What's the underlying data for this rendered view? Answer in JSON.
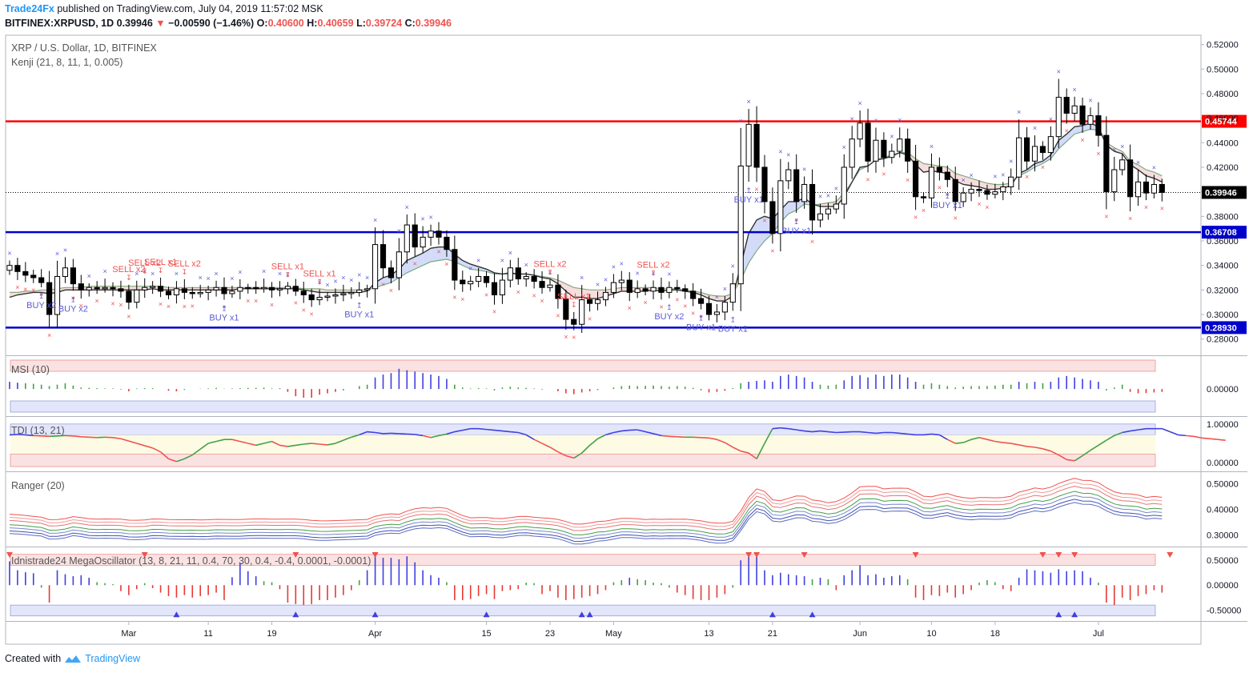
{
  "header": {
    "publisher": "Trade24Fx",
    "published_text": "published on TradingView.com, July 04, 2019 11:57:02 MSK",
    "symbol": "BITFINEX:XRPUSD, 1D",
    "last": "0.39946",
    "arrow": "▼",
    "change": "−0.00590 (−1.46%)",
    "o_label": "O:",
    "o": "0.40600",
    "h_label": "H:",
    "h": "0.40659",
    "l_label": "L:",
    "l": "0.39724",
    "c_label": "C:",
    "c": "0.39946"
  },
  "footer": {
    "created_with": "Created with",
    "tradingview": "TradingView"
  },
  "colors": {
    "up": "#ffffff",
    "down": "#000000",
    "red_level": "#ff0000",
    "blue_level": "#0000cc",
    "buy": "#5b5bd6",
    "sell": "#ef5350"
  },
  "chart_data": [
    {
      "type": "candlestick",
      "title": "XRP / U.S. Dollar, 1D, BITFINEX",
      "indicator_label": "Kenji (21, 8, 11, 1, 0.005)",
      "ylim": [
        0.27,
        0.525
      ],
      "y_ticks": [
        "0.52000",
        "0.50000",
        "0.48000",
        "0.46000",
        "0.44000",
        "0.42000",
        "0.40000",
        "0.38000",
        "0.36000",
        "0.34000",
        "0.32000",
        "0.30000",
        "0.28000"
      ],
      "x_ticks": [
        {
          "label": "Mar",
          "index": 15
        },
        {
          "label": "11",
          "index": 25
        },
        {
          "label": "19",
          "index": 33
        },
        {
          "label": "Apr",
          "index": 46
        },
        {
          "label": "15",
          "index": 60
        },
        {
          "label": "23",
          "index": 68
        },
        {
          "label": "May",
          "index": 76
        },
        {
          "label": "13",
          "index": 88
        },
        {
          "label": "21",
          "index": 96
        },
        {
          "label": "Jun",
          "index": 107
        },
        {
          "label": "10",
          "index": 116
        },
        {
          "label": "18",
          "index": 124
        },
        {
          "label": "Jul",
          "index": 137
        }
      ],
      "levels": [
        {
          "value": 0.45744,
          "label": "0.45744",
          "color": "#ff0000"
        },
        {
          "value": 0.36708,
          "label": "0.36708",
          "color": "#0000cc"
        },
        {
          "value": 0.2893,
          "label": "0.28930",
          "color": "#0000cc"
        }
      ],
      "last_price": {
        "value": 0.39946,
        "label": "0.39946"
      },
      "closes": [
        0.34,
        0.335,
        0.332,
        0.33,
        0.326,
        0.3,
        0.331,
        0.338,
        0.325,
        0.32,
        0.322,
        0.321,
        0.322,
        0.321,
        0.319,
        0.31,
        0.32,
        0.322,
        0.323,
        0.319,
        0.316,
        0.321,
        0.318,
        0.317,
        0.318,
        0.32,
        0.322,
        0.317,
        0.319,
        0.322,
        0.322,
        0.321,
        0.322,
        0.32,
        0.321,
        0.323,
        0.319,
        0.316,
        0.312,
        0.314,
        0.315,
        0.316,
        0.317,
        0.318,
        0.32,
        0.321,
        0.357,
        0.338,
        0.33,
        0.351,
        0.373,
        0.355,
        0.363,
        0.368,
        0.363,
        0.353,
        0.328,
        0.325,
        0.327,
        0.331,
        0.326,
        0.316,
        0.328,
        0.338,
        0.329,
        0.331,
        0.327,
        0.322,
        0.324,
        0.313,
        0.296,
        0.292,
        0.312,
        0.309,
        0.312,
        0.318,
        0.326,
        0.328,
        0.318,
        0.321,
        0.319,
        0.322,
        0.318,
        0.322,
        0.321,
        0.319,
        0.313,
        0.309,
        0.3,
        0.302,
        0.31,
        0.325,
        0.421,
        0.455,
        0.42,
        0.392,
        0.366,
        0.409,
        0.418,
        0.392,
        0.406,
        0.377,
        0.382,
        0.386,
        0.39,
        0.42,
        0.443,
        0.456,
        0.425,
        0.442,
        0.428,
        0.433,
        0.443,
        0.425,
        0.396,
        0.395,
        0.42,
        0.416,
        0.41,
        0.392,
        0.399,
        0.402,
        0.401,
        0.398,
        0.4,
        0.404,
        0.412,
        0.444,
        0.425,
        0.437,
        0.432,
        0.445,
        0.477,
        0.464,
        0.47,
        0.455,
        0.462,
        0.446,
        0.4,
        0.418,
        0.426,
        0.396,
        0.408,
        0.399,
        0.406,
        0.39946
      ],
      "slow_line": [
        0.318,
        0.318,
        0.319,
        0.319,
        0.32,
        0.32,
        0.321,
        0.322,
        0.322,
        0.322,
        0.323,
        0.323,
        0.323,
        0.323,
        0.323,
        0.323,
        0.323,
        0.323,
        0.323,
        0.323,
        0.322,
        0.322,
        0.322,
        0.322,
        0.322,
        0.322,
        0.322,
        0.322,
        0.322,
        0.322,
        0.322,
        0.322,
        0.322,
        0.322,
        0.322,
        0.322,
        0.322,
        0.321,
        0.321,
        0.321,
        0.32,
        0.32,
        0.32,
        0.32,
        0.32,
        0.32,
        0.322,
        0.324,
        0.326,
        0.33,
        0.334,
        0.337,
        0.34,
        0.343,
        0.344,
        0.345,
        0.343,
        0.34,
        0.337,
        0.336,
        0.335,
        0.333,
        0.333,
        0.333,
        0.333,
        0.333,
        0.332,
        0.331,
        0.33,
        0.328,
        0.325,
        0.322,
        0.321,
        0.32,
        0.32,
        0.32,
        0.321,
        0.322,
        0.322,
        0.322,
        0.322,
        0.322,
        0.321,
        0.321,
        0.321,
        0.32,
        0.319,
        0.318,
        0.316,
        0.315,
        0.315,
        0.317,
        0.328,
        0.342,
        0.352,
        0.36,
        0.366,
        0.375,
        0.382,
        0.385,
        0.39,
        0.389,
        0.39,
        0.391,
        0.392,
        0.399,
        0.408,
        0.418,
        0.421,
        0.426,
        0.428,
        0.43,
        0.432,
        0.432,
        0.427,
        0.423,
        0.422,
        0.421,
        0.42,
        0.415,
        0.413,
        0.411,
        0.409,
        0.407,
        0.406,
        0.406,
        0.407,
        0.413,
        0.416,
        0.42,
        0.423,
        0.427,
        0.435,
        0.441,
        0.447,
        0.449,
        0.451,
        0.45,
        0.44,
        0.436,
        0.433,
        0.425,
        0.422,
        0.418,
        0.416,
        0.413
      ],
      "fast_line": [
        0.314,
        0.316,
        0.317,
        0.318,
        0.318,
        0.317,
        0.318,
        0.32,
        0.32,
        0.32,
        0.32,
        0.32,
        0.32,
        0.32,
        0.32,
        0.32,
        0.32,
        0.32,
        0.321,
        0.32,
        0.32,
        0.32,
        0.32,
        0.32,
        0.32,
        0.32,
        0.32,
        0.32,
        0.32,
        0.321,
        0.321,
        0.321,
        0.321,
        0.321,
        0.321,
        0.321,
        0.321,
        0.32,
        0.319,
        0.318,
        0.318,
        0.318,
        0.318,
        0.318,
        0.318,
        0.319,
        0.326,
        0.33,
        0.332,
        0.337,
        0.344,
        0.347,
        0.35,
        0.354,
        0.355,
        0.355,
        0.349,
        0.344,
        0.341,
        0.339,
        0.337,
        0.334,
        0.333,
        0.334,
        0.333,
        0.333,
        0.332,
        0.33,
        0.329,
        0.325,
        0.319,
        0.314,
        0.314,
        0.313,
        0.313,
        0.315,
        0.317,
        0.319,
        0.319,
        0.319,
        0.319,
        0.32,
        0.319,
        0.32,
        0.32,
        0.319,
        0.318,
        0.316,
        0.313,
        0.311,
        0.311,
        0.315,
        0.34,
        0.366,
        0.377,
        0.38,
        0.378,
        0.385,
        0.392,
        0.392,
        0.395,
        0.39,
        0.388,
        0.388,
        0.388,
        0.396,
        0.408,
        0.42,
        0.421,
        0.426,
        0.427,
        0.429,
        0.432,
        0.43,
        0.422,
        0.416,
        0.417,
        0.416,
        0.415,
        0.409,
        0.406,
        0.405,
        0.404,
        0.402,
        0.402,
        0.403,
        0.405,
        0.415,
        0.418,
        0.423,
        0.425,
        0.43,
        0.442,
        0.447,
        0.453,
        0.454,
        0.456,
        0.453,
        0.438,
        0.433,
        0.431,
        0.422,
        0.418,
        0.413,
        0.411,
        0.408
      ],
      "buy_labels": [
        {
          "index": 4,
          "label": "BUY x2"
        },
        {
          "index": 8,
          "label": "BUY x2"
        },
        {
          "index": 27,
          "label": "BUY x1"
        },
        {
          "index": 44,
          "label": "BUY x1"
        },
        {
          "index": 83,
          "label": "BUY x2"
        },
        {
          "index": 87,
          "label": "BUY x1"
        },
        {
          "index": 91,
          "label": "BUY x1"
        },
        {
          "index": 93,
          "label": "BUY x1"
        },
        {
          "index": 99,
          "label": "BUY x1"
        },
        {
          "index": 118,
          "label": "BUY x1"
        }
      ],
      "sell_labels": [
        {
          "index": 15,
          "label": "SELL x2"
        },
        {
          "index": 17,
          "label": "SELL x2"
        },
        {
          "index": 19,
          "label": "SELL x1"
        },
        {
          "index": 22,
          "label": "SELL x2"
        },
        {
          "index": 35,
          "label": "SELL x1"
        },
        {
          "index": 39,
          "label": "SELL x1"
        },
        {
          "index": 68,
          "label": "SELL x2"
        },
        {
          "index": 71,
          "label": "SELL x1"
        },
        {
          "index": 81,
          "label": "SELL x2"
        }
      ]
    },
    {
      "type": "bar",
      "title": "MSI (10)",
      "ylim": [
        -0.08,
        0.1
      ],
      "y_ticks": [
        "0.00000"
      ],
      "values": [
        0.025,
        0.022,
        0.02,
        0.018,
        0.015,
        0.01,
        0.015,
        0.02,
        0.012,
        0.005,
        0.004,
        0.003,
        0.002,
        0.002,
        -0.002,
        -0.008,
        0.002,
        0.003,
        0.003,
        0.0,
        -0.006,
        -0.008,
        -0.003,
        0.0,
        0.001,
        0.002,
        0.004,
        0.001,
        0.002,
        0.003,
        0.004,
        0.004,
        0.005,
        0.002,
        0.003,
        -0.01,
        -0.025,
        -0.03,
        -0.03,
        -0.02,
        -0.015,
        -0.01,
        -0.005,
        0.0,
        0.01,
        0.015,
        0.04,
        0.05,
        0.055,
        0.07,
        0.065,
        0.06,
        0.055,
        0.05,
        0.045,
        0.035,
        0.015,
        0.005,
        0.002,
        0.003,
        0.002,
        -0.005,
        0.005,
        0.008,
        0.005,
        0.004,
        0.002,
        -0.002,
        0.0,
        -0.008,
        -0.015,
        -0.018,
        -0.012,
        -0.008,
        -0.004,
        0.0,
        0.005,
        0.01,
        0.012,
        0.01,
        0.011,
        0.012,
        0.01,
        0.008,
        0.01,
        0.008,
        0.004,
        -0.005,
        -0.012,
        -0.01,
        -0.006,
        0.003,
        0.02,
        0.025,
        0.028,
        0.03,
        0.025,
        0.045,
        0.05,
        0.045,
        0.04,
        0.025,
        0.015,
        0.012,
        0.015,
        0.03,
        0.045,
        0.048,
        0.04,
        0.05,
        0.045,
        0.05,
        0.05,
        0.04,
        0.025,
        0.015,
        0.02,
        0.015,
        0.01,
        0.005,
        0.008,
        0.01,
        0.01,
        0.01,
        0.012,
        0.015,
        0.015,
        0.025,
        0.02,
        0.025,
        0.02,
        0.025,
        0.04,
        0.045,
        0.04,
        0.035,
        0.03,
        0.025,
        -0.005,
        0.005,
        0.015,
        -0.01,
        -0.015,
        -0.014,
        -0.012,
        -0.01
      ]
    },
    {
      "type": "line",
      "title": "TDI (13, 21)",
      "ylim": [
        -0.12,
        1.08
      ],
      "y_ticks": [
        "1.00000",
        "0.00000"
      ],
      "values": [
        0.72,
        0.73,
        0.72,
        0.7,
        0.69,
        0.68,
        0.69,
        0.7,
        0.69,
        0.67,
        0.66,
        0.65,
        0.66,
        0.65,
        0.62,
        0.56,
        0.5,
        0.44,
        0.38,
        0.28,
        0.1,
        0.03,
        0.1,
        0.2,
        0.35,
        0.5,
        0.55,
        0.6,
        0.6,
        0.55,
        0.5,
        0.45,
        0.5,
        0.55,
        0.45,
        0.42,
        0.45,
        0.48,
        0.5,
        0.48,
        0.46,
        0.5,
        0.58,
        0.66,
        0.72,
        0.8,
        0.78,
        0.75,
        0.76,
        0.75,
        0.74,
        0.73,
        0.7,
        0.65,
        0.7,
        0.74,
        0.8,
        0.84,
        0.88,
        0.88,
        0.86,
        0.84,
        0.82,
        0.8,
        0.78,
        0.72,
        0.6,
        0.5,
        0.4,
        0.28,
        0.18,
        0.12,
        0.25,
        0.45,
        0.62,
        0.72,
        0.78,
        0.82,
        0.84,
        0.85,
        0.8,
        0.75,
        0.7,
        0.68,
        0.67,
        0.66,
        0.66,
        0.65,
        0.64,
        0.6,
        0.52,
        0.4,
        0.3,
        0.25,
        0.1,
        0.5,
        0.88,
        0.9,
        0.88,
        0.85,
        0.82,
        0.8,
        0.82,
        0.8,
        0.78,
        0.79,
        0.8,
        0.8,
        0.78,
        0.76,
        0.78,
        0.78,
        0.76,
        0.74,
        0.72,
        0.72,
        0.74,
        0.72,
        0.6,
        0.5,
        0.52,
        0.6,
        0.65,
        0.6,
        0.55,
        0.52,
        0.5,
        0.46,
        0.42,
        0.4,
        0.36,
        0.3,
        0.2,
        0.08,
        0.05,
        0.18,
        0.32,
        0.45,
        0.58,
        0.7,
        0.78,
        0.82,
        0.85,
        0.88,
        0.88,
        0.88,
        0.8,
        0.72,
        0.7,
        0.68,
        0.64,
        0.62,
        0.6,
        0.58
      ],
      "upper_band": 0.72,
      "lower_band": 0.22
    },
    {
      "type": "line",
      "title": "Ranger (20)",
      "ylim": [
        0.27,
        0.53
      ],
      "y_ticks": [
        "0.50000",
        "0.40000",
        "0.30000"
      ],
      "series_note": "Seven envelope lines around the 20-period mean"
    },
    {
      "type": "bar",
      "title": "Idnistrade24 MegaOscillator (13, 8, 21, 11, 0.4, 70, 30, 0.4, -0.4, 0.0001, -0.0001)",
      "ylim": [
        -0.64,
        0.68
      ],
      "y_ticks": [
        "0.50000",
        "0.00000",
        "-0.50000"
      ],
      "upper_band": 0.4,
      "lower_band": -0.4,
      "values": [
        0.48,
        0.3,
        0.26,
        0.24,
        -0.05,
        -0.35,
        0.3,
        0.22,
        0.18,
        0.2,
        0.15,
        0.06,
        0.04,
        0.02,
        -0.12,
        -0.2,
        -0.08,
        0.04,
        -0.06,
        -0.15,
        -0.22,
        -0.25,
        -0.2,
        -0.25,
        -0.22,
        -0.2,
        -0.15,
        -0.3,
        0.16,
        0.45,
        0.28,
        0.18,
        0.08,
        0.06,
        -0.08,
        -0.35,
        -0.38,
        -0.4,
        -0.38,
        -0.3,
        -0.3,
        -0.25,
        -0.2,
        -0.1,
        0.1,
        0.3,
        0.62,
        0.55,
        0.55,
        0.52,
        0.58,
        0.46,
        0.3,
        0.2,
        0.15,
        0.06,
        -0.3,
        -0.3,
        -0.28,
        -0.22,
        -0.18,
        -0.28,
        -0.12,
        -0.1,
        -0.08,
        0.05,
        0.04,
        -0.18,
        -0.12,
        -0.25,
        -0.3,
        -0.28,
        -0.25,
        -0.22,
        -0.18,
        -0.1,
        0.06,
        0.1,
        0.15,
        0.12,
        0.1,
        0.05,
        0.04,
        -0.05,
        -0.15,
        -0.2,
        -0.28,
        -0.3,
        -0.3,
        -0.25,
        -0.18,
        -0.05,
        0.5,
        0.6,
        0.58,
        0.3,
        0.2,
        0.25,
        0.22,
        0.2,
        0.18,
        0.12,
        0.15,
        0.12,
        -0.1,
        0.2,
        0.3,
        0.4,
        0.2,
        0.22,
        0.15,
        0.18,
        0.2,
        0.12,
        -0.25,
        -0.3,
        -0.2,
        -0.22,
        -0.15,
        -0.25,
        -0.18,
        -0.1,
        0.05,
        0.1,
        0.06,
        -0.08,
        -0.12,
        0.15,
        0.32,
        0.3,
        0.28,
        0.25,
        0.32,
        0.28,
        0.3,
        0.28,
        0.15,
        0.05,
        -0.35,
        -0.4,
        -0.25,
        -0.3,
        -0.22,
        -0.18,
        -0.1,
        -0.15
      ],
      "up_markers": [
        21,
        36,
        46,
        60,
        72,
        73,
        96,
        101,
        132,
        134
      ],
      "down_markers": [
        0,
        17,
        36,
        46,
        93,
        94,
        100,
        114,
        130,
        132,
        134,
        146
      ]
    }
  ]
}
